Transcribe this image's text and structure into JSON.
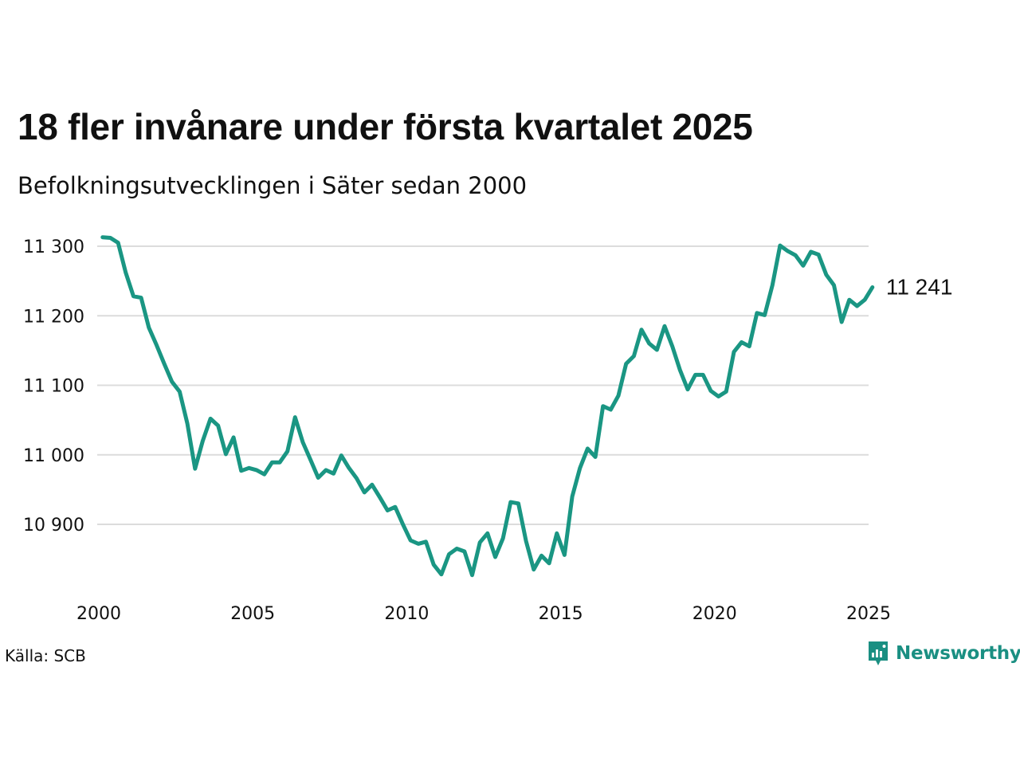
{
  "title": "18 fler invånare under första kvartalet 2025",
  "subtitle": "Befolkningsutvecklingen i Säter sedan 2000",
  "source": "Källa: SCB",
  "brand": {
    "name": "Newsworthy",
    "icon": "newsworthy-logo-icon",
    "color": "#1a8f82"
  },
  "chart_data": {
    "type": "line",
    "line_color": "#1a9683",
    "grid": true,
    "ylim": [
      10800,
      11310
    ],
    "xlim": [
      2000,
      2025
    ],
    "yticks": [
      {
        "value": 10900,
        "label": "10 900"
      },
      {
        "value": 11000,
        "label": "11 000"
      },
      {
        "value": 11100,
        "label": "11 100"
      },
      {
        "value": 11200,
        "label": "11 200"
      },
      {
        "value": 11300,
        "label": "11 300"
      }
    ],
    "xticks": [
      {
        "value": 2000,
        "label": "2000"
      },
      {
        "value": 2005,
        "label": "2005"
      },
      {
        "value": 2010,
        "label": "2010"
      },
      {
        "value": 2015,
        "label": "2015"
      },
      {
        "value": 2020,
        "label": "2020"
      },
      {
        "value": 2025,
        "label": "2025"
      }
    ],
    "end_label": "11 241",
    "series": [
      {
        "x": [
          "2000 K1",
          "2000 K2",
          "2000 K3",
          "2000 K4",
          "2001 K1",
          "2001 K2",
          "2001 K3",
          "2001 K4",
          "2002 K1",
          "2002 K2",
          "2002 K3",
          "2002 K4",
          "2003 K1",
          "2003 K2",
          "2003 K3",
          "2003 K4",
          "2004 K1",
          "2004 K2",
          "2004 K3",
          "2004 K4",
          "2005 K1",
          "2005 K2",
          "2005 K3",
          "2005 K4",
          "2006 K1",
          "2006 K2",
          "2006 K3",
          "2006 K4",
          "2007 K1",
          "2007 K2",
          "2007 K3",
          "2007 K4",
          "2008 K1",
          "2008 K2",
          "2008 K3",
          "2008 K4",
          "2009 K1",
          "2009 K2",
          "2009 K3",
          "2009 K4",
          "2010 K1",
          "2010 K2",
          "2010 K3",
          "2010 K4",
          "2011 K1",
          "2011 K2",
          "2011 K3",
          "2011 K4",
          "2012 K1",
          "2012 K2",
          "2012 K3",
          "2012 K4",
          "2013 K1",
          "2013 K2",
          "2013 K3",
          "2013 K4",
          "2014 K1",
          "2014 K2",
          "2014 K3",
          "2014 K4",
          "2015 K1",
          "2015 K2",
          "2015 K3",
          "2015 K4",
          "2016 K1",
          "2016 K2",
          "2016 K3",
          "2016 K4",
          "2017 K1",
          "2017 K2",
          "2017 K3",
          "2017 K4",
          "2018 K1",
          "2018 K2",
          "2018 K3",
          "2018 K4",
          "2019 K1",
          "2019 K2",
          "2019 K3",
          "2019 K4",
          "2020 K1",
          "2020 K2",
          "2020 K3",
          "2020 K4",
          "2021 K1",
          "2021 K2",
          "2021 K3",
          "2021 K4",
          "2022 K1",
          "2022 K2",
          "2022 K3",
          "2022 K4",
          "2023 K1",
          "2023 K2",
          "2023 K3",
          "2023 K4",
          "2024 K1",
          "2024 K2",
          "2024 K3",
          "2024 K4",
          "2025 K1"
        ],
        "y": [
          11313,
          11312,
          11305,
          11262,
          11228,
          11226,
          11183,
          11158,
          11131,
          11105,
          11091,
          11045,
          10980,
          11020,
          11052,
          11042,
          11001,
          11025,
          10977,
          10981,
          10978,
          10972,
          10989,
          10989,
          11005,
          11054,
          11018,
          10993,
          10967,
          10978,
          10973,
          10999,
          10981,
          10966,
          10946,
          10957,
          10939,
          10920,
          10925,
          10900,
          10877,
          10872,
          10875,
          10842,
          10828,
          10857,
          10865,
          10861,
          10827,
          10874,
          10887,
          10853,
          10880,
          10932,
          10930,
          10876,
          10835,
          10855,
          10844,
          10887,
          10856,
          10940,
          10981,
          11009,
          10997,
          11070,
          11065,
          11085,
          11131,
          11142,
          11180,
          11160,
          11151,
          11185,
          11156,
          11122,
          11094,
          11115,
          11115,
          11092,
          11084,
          11091,
          11148,
          11162,
          11156,
          11204,
          11201,
          11244,
          11301,
          11293,
          11287,
          11272,
          11292,
          11288,
          11259,
          11244,
          11191,
          11223,
          11214,
          11223,
          11241
        ]
      }
    ]
  }
}
